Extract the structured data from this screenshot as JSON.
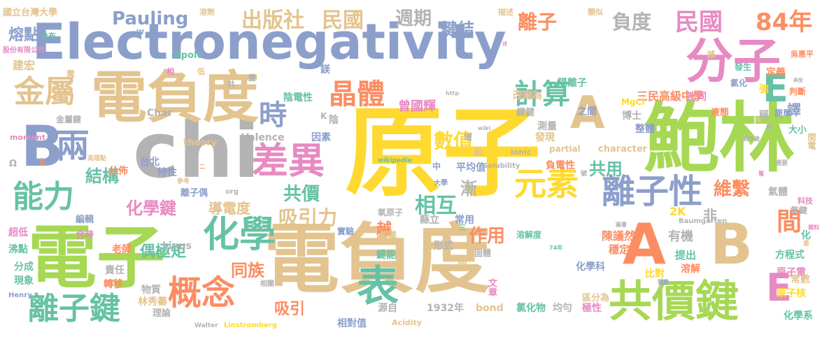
{
  "words": [
    {
      "t": "電負度",
      "c": "#e3c48f"
    },
    {
      "t": "Electronegativity",
      "c": "#8c9fcb"
    },
    {
      "t": "原子",
      "c": "#ffd92f"
    },
    {
      "t": "chi",
      "c": "#b3b3b3"
    },
    {
      "t": "電子",
      "c": "#a6d854"
    },
    {
      "t": "鮑林",
      "c": "#a6d854"
    },
    {
      "t": "電負度",
      "c": "#e3c48f"
    },
    {
      "t": "分子",
      "c": "#e78ac3"
    },
    {
      "t": "共價鍵",
      "c": "#a6d854"
    },
    {
      "t": "A",
      "c": "#e3c48f"
    },
    {
      "t": "A",
      "c": "#fc8d62"
    },
    {
      "t": "B",
      "c": "#8c9fcb"
    },
    {
      "t": "B",
      "c": "#e3c48f"
    },
    {
      "t": "E",
      "c": "#e78ac3"
    },
    {
      "t": "E",
      "c": "#66c2a5"
    },
    {
      "t": "兩",
      "c": "#8c9fcb"
    },
    {
      "t": "能力",
      "c": "#66c2a5"
    },
    {
      "t": "化學",
      "c": "#66c2a5"
    },
    {
      "t": "概念",
      "c": "#fc8d62"
    },
    {
      "t": "表",
      "c": "#66c2a5"
    },
    {
      "t": "元素",
      "c": "#ffd92f"
    },
    {
      "t": "離子性",
      "c": "#8c9fcb"
    },
    {
      "t": "差異",
      "c": "#e78ac3"
    },
    {
      "t": "離子鍵",
      "c": "#66c2a5"
    },
    {
      "t": "金屬",
      "c": "#e3c48f"
    },
    {
      "t": "時",
      "c": "#8c9fcb"
    },
    {
      "t": "晶體",
      "c": "#fc8d62"
    },
    {
      "t": "計算",
      "c": "#66c2a5"
    },
    {
      "t": "民國",
      "c": "#e78ac3"
    },
    {
      "t": "84年",
      "c": "#fc8d62"
    },
    {
      "t": "出版社",
      "c": "#e3c48f"
    },
    {
      "t": "民國",
      "c": "#e3c48f"
    },
    {
      "t": "Pauling",
      "c": "#8c9fcb"
    },
    {
      "t": "週期",
      "c": "#b3b3b3"
    },
    {
      "t": "鍵結",
      "c": "#8c9fcb"
    },
    {
      "t": "離子",
      "c": "#fc8d62"
    },
    {
      "t": "負度",
      "c": "#b3b3b3"
    },
    {
      "t": "熔點",
      "c": "#8c9fcb"
    },
    {
      "t": "國立台灣大學",
      "c": "#e3c48f"
    },
    {
      "t": "溶劑",
      "c": "#e3c48f"
    },
    {
      "t": "類似",
      "c": "#e3c48f"
    },
    {
      "t": "描述",
      "c": "#e3c48f"
    },
    {
      "t": "分布",
      "c": "#66c2a5"
    },
    {
      "t": "股份有限公司",
      "c": "#e78ac3"
    },
    {
      "t": "W",
      "c": "#8c9fcb"
    },
    {
      "t": "dipole",
      "c": "#66c2a5"
    },
    {
      "t": "建宏",
      "c": "#e3c48f"
    },
    {
      "t": "相",
      "c": "#e78ac3"
    },
    {
      "t": "低",
      "c": "#e3c48f"
    },
    {
      "t": "雲",
      "c": "#e3c48f"
    },
    {
      "t": "雙",
      "c": "#b3b3b3"
    },
    {
      "t": "數值",
      "c": "#ffd92f"
    },
    {
      "t": "結構",
      "c": "#66c2a5"
    },
    {
      "t": "共用",
      "c": "#66c2a5"
    },
    {
      "t": "化學鍵",
      "c": "#e78ac3"
    },
    {
      "t": "共價",
      "c": "#66c2a5"
    },
    {
      "t": "吸引力",
      "c": "#e3c48f"
    },
    {
      "t": "相互",
      "c": "#66c2a5"
    },
    {
      "t": "維繫",
      "c": "#fc8d62"
    },
    {
      "t": "間",
      "c": "#fc8d62"
    },
    {
      "t": "導電度",
      "c": "#e3c48f"
    },
    {
      "t": "同族",
      "c": "#fc8d62"
    },
    {
      "t": "作用",
      "c": "#fc8d62"
    },
    {
      "t": "偶極矩",
      "c": "#66c2a5"
    },
    {
      "t": "吸引",
      "c": "#fc8d62"
    },
    {
      "t": "越",
      "c": "#fc8d62"
    },
    {
      "t": "漸",
      "c": "#b3b3b3"
    },
    {
      "t": "非",
      "c": "#b3b3b3"
    },
    {
      "t": "三民高級中學",
      "c": "#fc8d62"
    },
    {
      "t": "發生",
      "c": "#66c2a5"
    },
    {
      "t": "吳惠平",
      "c": "#fc8d62"
    },
    {
      "t": "定義",
      "c": "#fc8d62"
    },
    {
      "t": "強",
      "c": "#ffd92f"
    },
    {
      "t": "判斷",
      "c": "#fc8d62"
    },
    {
      "t": "氯化",
      "c": "#8c9fcb"
    },
    {
      "t": "比同",
      "c": "#e78ac3"
    },
    {
      "t": "陽離子",
      "c": "#66c2a5"
    },
    {
      "t": "價鍵",
      "c": "#b3b3b3"
    },
    {
      "t": "陰電性",
      "c": "#66c2a5"
    },
    {
      "t": "曾國輝",
      "c": "#e78ac3"
    },
    {
      "t": "平均值",
      "c": "#8c9fcb"
    },
    {
      "t": "譯",
      "c": "#8c9fcb"
    },
    {
      "t": "之間",
      "c": "#8c9fcb"
    },
    {
      "t": "稱",
      "c": "#b3b3b3"
    },
    {
      "t": "簡單",
      "c": "#8c9fcb"
    },
    {
      "t": "液態",
      "c": "#fc8d62"
    },
    {
      "t": "大小",
      "c": "#66c2a5"
    },
    {
      "t": "MgCl",
      "c": "#ffd92f"
    },
    {
      "t": "博士",
      "c": "#b3b3b3"
    },
    {
      "t": "鍵鍵",
      "c": "#b3b3b3"
    },
    {
      "t": "測量",
      "c": "#b3b3b3"
    },
    {
      "t": "發現",
      "c": "#e3c48f"
    },
    {
      "t": "整體",
      "c": "#8c9fcb"
    },
    {
      "t": "間電",
      "c": "#e3c48f"
    },
    {
      "t": "負電性",
      "c": "#fc8d62"
    },
    {
      "t": "摘要",
      "c": "#b3b3b3"
    },
    {
      "t": "氣體",
      "c": "#b3b3b3"
    },
    {
      "t": "氧鍵",
      "c": "#b3b3b3"
    },
    {
      "t": "2K",
      "c": "#ffd92f"
    },
    {
      "t": "有機",
      "c": "#b3b3b3"
    },
    {
      "t": "Baumgarten",
      "c": "#b3b3b3"
    },
    {
      "t": "化",
      "c": "#66c2a5"
    },
    {
      "t": "陳議然",
      "c": "#fc8d62"
    },
    {
      "t": "穩定",
      "c": "#fc8d62"
    },
    {
      "t": "提出",
      "c": "#66c2a5"
    },
    {
      "t": "溶解",
      "c": "#fc8d62"
    },
    {
      "t": "方程式",
      "c": "#66c2a5"
    },
    {
      "t": "原子電",
      "c": "#e78ac3"
    },
    {
      "t": "原子核",
      "c": "#ffd92f"
    },
    {
      "t": "化學科",
      "c": "#8c9fcb"
    },
    {
      "t": "比對",
      "c": "#ffd92f"
    },
    {
      "t": "區分為",
      "c": "#e3c48f"
    },
    {
      "t": "化學系",
      "c": "#66c2a5"
    },
    {
      "t": "常數",
      "c": "#e3c48f"
    },
    {
      "t": "Walter",
      "c": "#b3b3b3"
    },
    {
      "t": "Linstromberg",
      "c": "#ffd92f"
    },
    {
      "t": "相對值",
      "c": "#8c9fcb"
    },
    {
      "t": "源自",
      "c": "#b3b3b3"
    },
    {
      "t": "1932年",
      "c": "#b3b3b3"
    },
    {
      "t": "bond",
      "c": "#e3c48f"
    },
    {
      "t": "氯化物",
      "c": "#66c2a5"
    },
    {
      "t": "均勻",
      "c": "#b3b3b3"
    },
    {
      "t": "極性",
      "c": "#e78ac3"
    },
    {
      "t": "Acidity",
      "c": "#e3c48f"
    },
    {
      "t": "文章",
      "c": "#e78ac3"
    },
    {
      "t": "林秀蓁",
      "c": "#e3c48f"
    },
    {
      "t": "理論",
      "c": "#b3b3b3"
    },
    {
      "t": "物質",
      "c": "#b3b3b3"
    },
    {
      "t": "相關",
      "c": "#b3b3b3"
    },
    {
      "t": "責任",
      "c": "#b3b3b3"
    },
    {
      "t": "轉移",
      "c": "#fc8d62"
    },
    {
      "t": "現象",
      "c": "#66c2a5"
    },
    {
      "t": "分成",
      "c": "#66c2a5"
    },
    {
      "t": "沸點",
      "c": "#66c2a5"
    },
    {
      "t": "超低",
      "c": "#e78ac3"
    },
    {
      "t": "合時",
      "c": "#e78ac3"
    },
    {
      "t": "編輯",
      "c": "#8c9fcb"
    },
    {
      "t": "老師",
      "c": "#fc8d62"
    },
    {
      "t": "Linus",
      "c": "#b3b3b3"
    },
    {
      "t": "實驗",
      "c": "#8c9fcb"
    },
    {
      "t": "解離",
      "c": "#e3c48f"
    },
    {
      "t": "鍵能",
      "c": "#66c2a5"
    },
    {
      "t": "形式",
      "c": "#b3b3b3"
    },
    {
      "t": "固體",
      "c": "#b3b3b3"
    },
    {
      "t": "高",
      "c": "#e3c48f"
    },
    {
      "t": "溶解度",
      "c": "#66c2a5"
    },
    {
      "t": "縣立",
      "c": "#b3b3b3"
    },
    {
      "t": "常用",
      "c": "#8c9fcb"
    },
    {
      "t": "氧原子",
      "c": "#b3b3b3"
    },
    {
      "t": "離子偶",
      "c": "#8c9fcb"
    },
    {
      "t": "特性",
      "c": "#8c9fcb"
    },
    {
      "t": "參考",
      "c": "#e3c48f"
    },
    {
      "t": "台北",
      "c": "#8c9fcb"
    },
    {
      "t": "分佈",
      "c": "#fc8d62"
    },
    {
      "t": "theory",
      "c": "#e3c48f"
    },
    {
      "t": "Valence",
      "c": "#b3b3b3"
    },
    {
      "t": "因素",
      "c": "#8c9fcb"
    },
    {
      "t": "ionic",
      "c": "#b3b3b3"
    },
    {
      "t": "partial",
      "c": "#e3c48f"
    },
    {
      "t": "character",
      "c": "#e3c48f"
    },
    {
      "t": "Solubility",
      "c": "#b3b3b3"
    },
    {
      "t": "wikipedia",
      "c": "#66c2a5"
    },
    {
      "t": "增",
      "c": "#b3b3b3"
    },
    {
      "t": "編",
      "c": "#e3c48f"
    },
    {
      "t": "中",
      "c": "#8c9fcb"
    },
    {
      "t": "大學",
      "c": "#8c9fcb"
    },
    {
      "t": "改寫為",
      "c": "#e3c48f"
    },
    {
      "t": "陰",
      "c": "#b3b3b3"
    },
    {
      "t": "K",
      "c": "#b3b3b3"
    },
    {
      "t": "金屬鍵",
      "c": "#b3b3b3"
    },
    {
      "t": "moment",
      "c": "#e78ac3"
    },
    {
      "t": "高熔點",
      "c": "#e3c48f"
    },
    {
      "t": "Char",
      "c": "#b3b3b3"
    },
    {
      "t": "Ω",
      "c": "#b3b3b3"
    },
    {
      "t": "右",
      "c": "#fc8d62"
    },
    {
      "t": "共",
      "c": "#b3b3b3"
    },
    {
      "t": "鎂",
      "c": "#8c9fcb"
    },
    {
      "t": "減",
      "c": "#e3c48f"
    },
    {
      "t": "述",
      "c": "#e78ac3"
    },
    {
      "t": "典型",
      "c": "#b3b3b3"
    },
    {
      "t": "圖書",
      "c": "#b3b3b3"
    },
    {
      "t": "強度",
      "c": "#8c9fcb"
    },
    {
      "t": "科技",
      "c": "#e78ac3"
    },
    {
      "t": "差",
      "c": "#e3c48f"
    },
    {
      "t": "資料",
      "c": "#e78ac3"
    },
    {
      "t": "74年",
      "c": "#66c2a5"
    },
    {
      "t": "Henry",
      "c": "#8c9fcb"
    },
    {
      "t": "三",
      "c": "#66c2a5"
    },
    {
      "t": "二",
      "c": "#fc8d62"
    },
    {
      "t": "http",
      "c": "#b3b3b3"
    },
    {
      "t": "wiki",
      "c": "#b3b3b3"
    },
    {
      "t": "org",
      "c": "#b3b3b3"
    },
    {
      "t": "離",
      "c": "#e3c48f"
    },
    {
      "t": "晶",
      "c": "#b3b3b3"
    },
    {
      "t": "電",
      "c": "#e78ac3"
    },
    {
      "t": "號",
      "c": "#b3b3b3"
    },
    {
      "t": "數李歲",
      "c": "#b3b3b3"
    },
    {
      "t": "晒面",
      "c": "#b3b3b3"
    }
  ]
}
